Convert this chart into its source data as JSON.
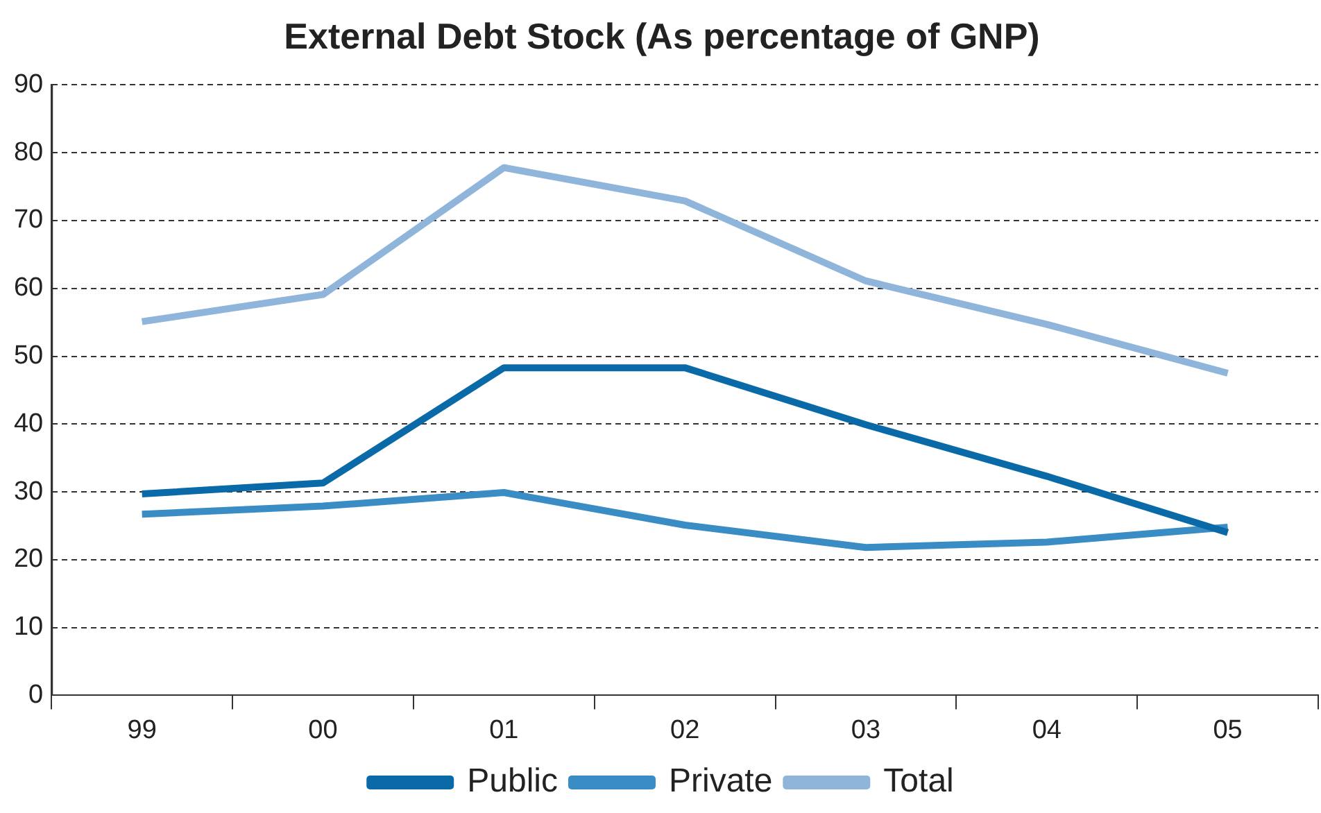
{
  "chart_data": {
    "type": "line",
    "title": "External Debt Stock (As percentage of GNP)",
    "categories": [
      "99",
      "00",
      "01",
      "02",
      "03",
      "04",
      "05"
    ],
    "series": [
      {
        "name": "Public",
        "color": "#0a6aa8",
        "values": [
          29.7,
          31.3,
          48.3,
          48.3,
          39.9,
          32.3,
          24
        ]
      },
      {
        "name": "Private",
        "color": "#3a8cc4",
        "values": [
          26.7,
          27.9,
          29.9,
          25.1,
          21.8,
          22.6,
          24.8
        ]
      },
      {
        "name": "Total",
        "color": "#8fb5da",
        "values": [
          55.1,
          59.1,
          77.8,
          72.9,
          61.1,
          54.7,
          47.5
        ]
      }
    ],
    "ylim": [
      0,
      90
    ],
    "yticks": [
      0,
      10,
      20,
      30,
      40,
      50,
      60,
      70,
      80,
      90
    ],
    "grid": "y",
    "legend": "bottom",
    "marker": "none",
    "line_style": "solid"
  }
}
